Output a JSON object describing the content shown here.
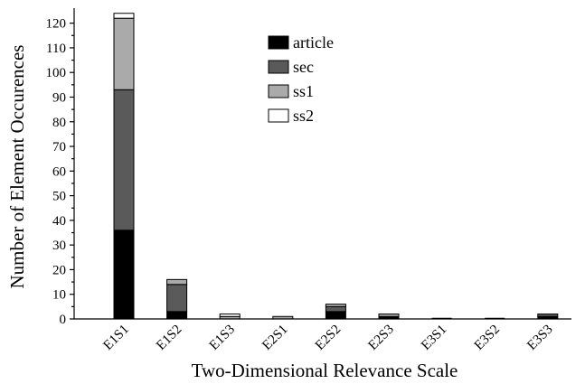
{
  "chart_data": {
    "type": "bar",
    "stacked": true,
    "title": "",
    "xlabel": "Two-Dimensional Relevance Scale",
    "ylabel": "Number of Element Occurences",
    "ylim": [
      0,
      125
    ],
    "yticks": [
      0,
      10,
      20,
      30,
      40,
      50,
      60,
      70,
      80,
      90,
      100,
      110,
      120
    ],
    "grid": false,
    "legend_position": "top-center",
    "categories": [
      "E1S1",
      "E1S2",
      "E1S3",
      "E2S1",
      "E2S2",
      "E2S3",
      "E3S1",
      "E3S2",
      "E3S3"
    ],
    "series": [
      {
        "name": "article",
        "color": "#000000",
        "values": [
          36,
          3,
          0,
          0,
          3,
          1,
          0,
          0,
          1
        ]
      },
      {
        "name": "sec",
        "color": "#5a5a5a",
        "values": [
          57,
          11,
          0,
          0,
          2,
          0,
          0,
          0,
          1
        ]
      },
      {
        "name": "ss1",
        "color": "#aaaaaa",
        "values": [
          29,
          2,
          1,
          1,
          1,
          1,
          0,
          0,
          0
        ]
      },
      {
        "name": "ss2",
        "color": "#ffffff",
        "values": [
          2,
          0,
          1,
          0,
          0,
          0,
          0,
          0,
          0
        ]
      }
    ]
  }
}
